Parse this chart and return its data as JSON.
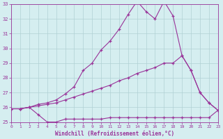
{
  "xlabel": "Windchill (Refroidissement éolien,°C)",
  "xlim": [
    0,
    23
  ],
  "ylim": [
    25,
    33
  ],
  "yticks": [
    25,
    26,
    27,
    28,
    29,
    30,
    31,
    32,
    33
  ],
  "xticks": [
    0,
    1,
    2,
    3,
    4,
    5,
    6,
    7,
    8,
    9,
    10,
    11,
    12,
    13,
    14,
    15,
    16,
    17,
    18,
    19,
    20,
    21,
    22,
    23
  ],
  "background_color": "#d5eef0",
  "line_color": "#993399",
  "grid_color": "#b0d0d4",
  "series": [
    {
      "x": [
        0,
        1,
        2,
        3,
        4,
        5,
        6,
        7,
        8,
        9,
        10,
        11,
        12,
        13,
        14,
        15,
        16,
        17,
        18,
        19,
        20,
        21,
        22,
        23
      ],
      "y": [
        25.9,
        25.9,
        26.0,
        25.5,
        25.0,
        25.0,
        25.2,
        25.2,
        25.2,
        25.2,
        25.2,
        25.3,
        25.3,
        25.3,
        25.3,
        25.3,
        25.3,
        25.3,
        25.3,
        25.3,
        25.3,
        25.3,
        25.3,
        25.8
      ]
    },
    {
      "x": [
        0,
        1,
        2,
        3,
        4,
        5,
        6,
        7,
        8,
        9,
        10,
        11,
        12,
        13,
        14,
        15,
        16,
        17,
        18,
        19,
        20,
        21,
        22,
        23
      ],
      "y": [
        25.9,
        25.9,
        26.0,
        26.1,
        26.2,
        26.3,
        26.5,
        26.7,
        26.9,
        27.1,
        27.3,
        27.5,
        27.8,
        28.0,
        28.3,
        28.5,
        28.7,
        29.0,
        29.0,
        29.5,
        28.5,
        27.0,
        26.3,
        25.8
      ]
    },
    {
      "x": [
        0,
        1,
        2,
        3,
        4,
        5,
        6,
        7,
        8,
        9,
        10,
        11,
        12,
        13,
        14,
        15,
        16,
        17,
        18,
        19,
        20,
        21,
        22,
        23
      ],
      "y": [
        25.9,
        25.9,
        26.0,
        26.2,
        26.3,
        26.5,
        26.9,
        27.4,
        28.5,
        29.0,
        29.9,
        30.5,
        31.3,
        32.3,
        33.2,
        32.5,
        32.0,
        33.2,
        32.2,
        29.5,
        28.5,
        27.0,
        26.3,
        25.8
      ]
    }
  ]
}
